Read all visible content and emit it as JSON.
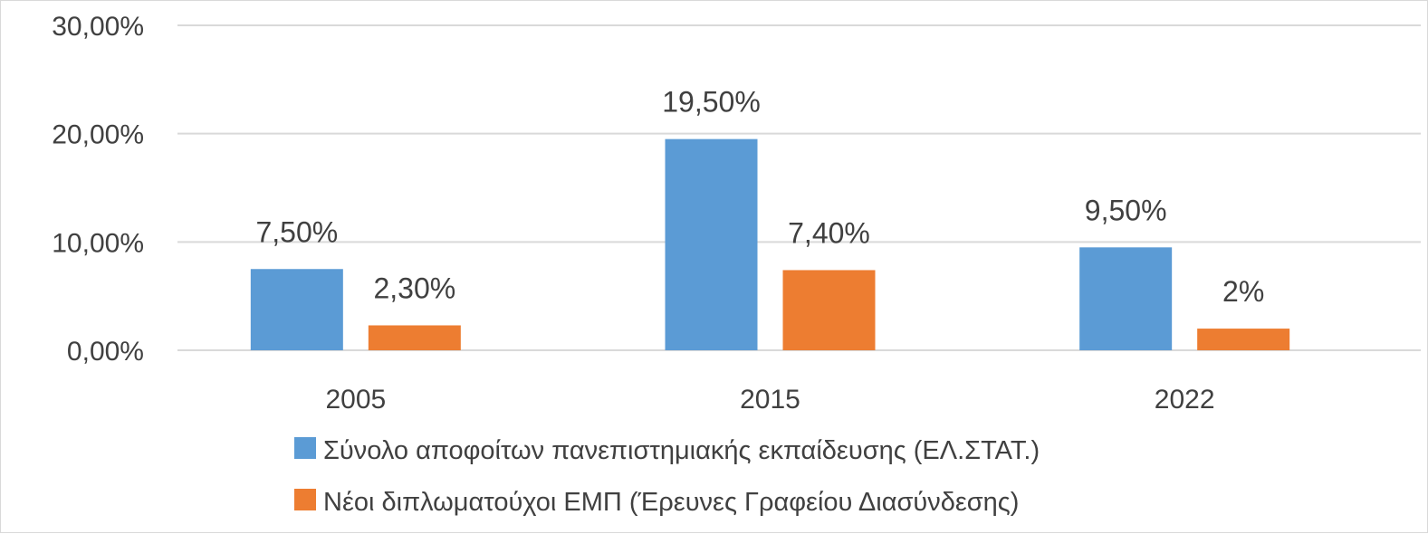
{
  "chart_data": {
    "type": "bar",
    "categories": [
      "2005",
      "2015",
      "2022"
    ],
    "series": [
      {
        "name": "Σύνολο αποφοίτων πανεπιστημιακής εκπαίδευσης (ΕΛ.ΣΤΑΤ.)",
        "color": "#5B9BD5",
        "values": [
          7.5,
          19.5,
          9.5
        ],
        "labels": [
          "7,50%",
          "19,50%",
          "9,50%"
        ]
      },
      {
        "name": "Νέοι διπλωματούχοι ΕΜΠ (Έρευνες Γραφείου Διασύνδεσης)",
        "color": "#ED7D31",
        "values": [
          2.3,
          7.4,
          2.0
        ],
        "labels": [
          "2,30%",
          "7,40%",
          "2%"
        ]
      }
    ],
    "yticks": [
      0,
      10,
      20,
      30
    ],
    "ytick_labels": [
      "0,00%",
      "10,00%",
      "20,00%",
      "30,00%"
    ],
    "ylim": [
      0,
      30
    ],
    "grid": true,
    "legend_position": "bottom",
    "gridline_color": "#d9d9d9",
    "text_color": "#404040"
  }
}
